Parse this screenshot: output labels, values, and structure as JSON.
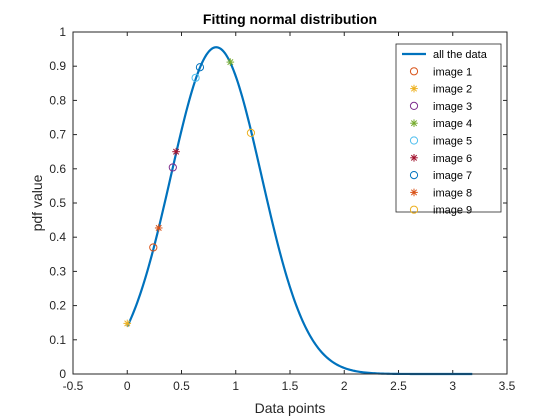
{
  "chart_data": {
    "type": "line",
    "title": "Fitting normal distribution",
    "xlabel": "Data points",
    "ylabel": "pdf value",
    "xlim": [
      -0.5,
      3.5
    ],
    "ylim": [
      0,
      1
    ],
    "xticks": [
      "-0.5",
      "0",
      "0.5",
      "1",
      "1.5",
      "2",
      "2.5",
      "3",
      "3.5"
    ],
    "yticks": [
      "0",
      "0.1",
      "0.2",
      "0.3",
      "0.4",
      "0.5",
      "0.6",
      "0.7",
      "0.8",
      "0.9",
      "1"
    ],
    "grid": false,
    "legend_position": "top-right",
    "curve": {
      "name": "all the data",
      "color": "#0072BD",
      "mean": 0.82,
      "sd": 0.4175,
      "x_range": [
        0,
        3.18
      ]
    },
    "series": [
      {
        "name": "image 1",
        "marker": "circle",
        "color": "#D95319",
        "x": 0.24,
        "y": 0.37
      },
      {
        "name": "image 2",
        "marker": "asterisk",
        "color": "#EDB120",
        "x": 0.0,
        "y": 0.148
      },
      {
        "name": "image 3",
        "marker": "circle",
        "color": "#7E2F8E",
        "x": 0.42,
        "y": 0.604
      },
      {
        "name": "image 4",
        "marker": "asterisk",
        "color": "#77AC30",
        "x": 0.95,
        "y": 0.912
      },
      {
        "name": "image 5",
        "marker": "circle",
        "color": "#4DBEEE",
        "x": 0.63,
        "y": 0.866
      },
      {
        "name": "image 6",
        "marker": "asterisk",
        "color": "#A2142F",
        "x": 0.45,
        "y": 0.65
      },
      {
        "name": "image 7",
        "marker": "circle",
        "color": "#0072BD",
        "x": 0.67,
        "y": 0.897
      },
      {
        "name": "image 8",
        "marker": "asterisk",
        "color": "#D95319",
        "x": 0.29,
        "y": 0.427
      },
      {
        "name": "image 9",
        "marker": "circle",
        "color": "#EDB120",
        "x": 1.14,
        "y": 0.705
      }
    ]
  }
}
